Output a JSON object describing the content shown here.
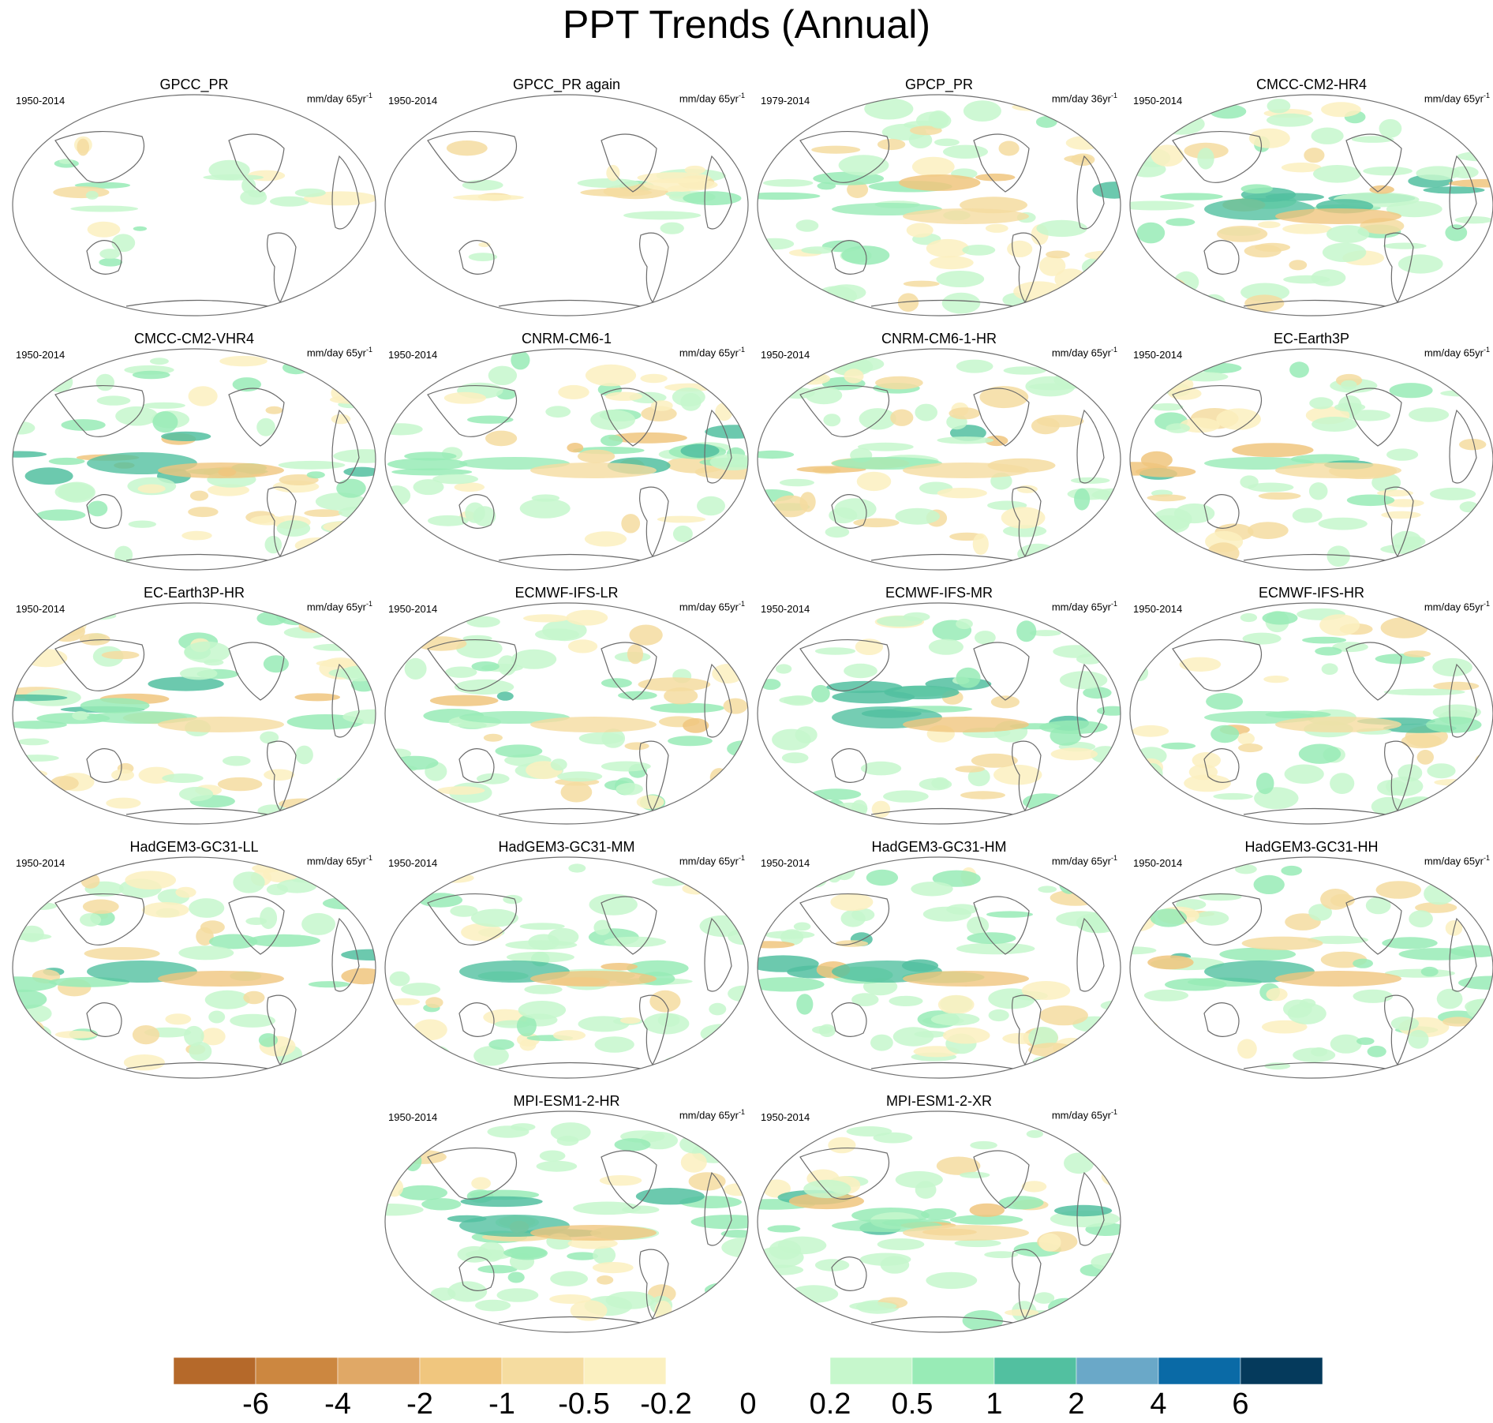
{
  "title": "PPT Trends (Annual)",
  "panels": [
    {
      "name": "GPCC_PR",
      "period": "1950-2014",
      "units": "mm/day 65yr",
      "units_exp": "-1"
    },
    {
      "name": "GPCC_PR again",
      "period": "1950-2014",
      "units": "mm/day 65yr",
      "units_exp": "-1"
    },
    {
      "name": "GPCP_PR",
      "period": "1979-2014",
      "units": "mm/day 36yr",
      "units_exp": "-1"
    },
    {
      "name": "CMCC-CM2-HR4",
      "period": "1950-2014",
      "units": "mm/day 65yr",
      "units_exp": "-1"
    },
    {
      "name": "CMCC-CM2-VHR4",
      "period": "1950-2014",
      "units": "mm/day 65yr",
      "units_exp": "-1"
    },
    {
      "name": "CNRM-CM6-1",
      "period": "1950-2014",
      "units": "mm/day 65yr",
      "units_exp": "-1"
    },
    {
      "name": "CNRM-CM6-1-HR",
      "period": "1950-2014",
      "units": "mm/day 65yr",
      "units_exp": "-1"
    },
    {
      "name": "EC-Earth3P",
      "period": "1950-2014",
      "units": "mm/day 65yr",
      "units_exp": "-1"
    },
    {
      "name": "EC-Earth3P-HR",
      "period": "1950-2014",
      "units": "mm/day 65yr",
      "units_exp": "-1"
    },
    {
      "name": "ECMWF-IFS-LR",
      "period": "1950-2014",
      "units": "mm/day 65yr",
      "units_exp": "-1"
    },
    {
      "name": "ECMWF-IFS-MR",
      "period": "1950-2014",
      "units": "mm/day 65yr",
      "units_exp": "-1"
    },
    {
      "name": "ECMWF-IFS-HR",
      "period": "1950-2014",
      "units": "mm/day 65yr",
      "units_exp": "-1"
    },
    {
      "name": "HadGEM3-GC31-LL",
      "period": "1950-2014",
      "units": "mm/day 65yr",
      "units_exp": "-1"
    },
    {
      "name": "HadGEM3-GC31-MM",
      "period": "1950-2014",
      "units": "mm/day 65yr",
      "units_exp": "-1"
    },
    {
      "name": "HadGEM3-GC31-HM",
      "period": "1950-2014",
      "units": "mm/day 65yr",
      "units_exp": "-1"
    },
    {
      "name": "HadGEM3-GC31-HH",
      "period": "1950-2014",
      "units": "mm/day 65yr",
      "units_exp": "-1"
    },
    {
      "name": "MPI-ESM1-2-HR",
      "period": "1950-2014",
      "units": "mm/day 65yr",
      "units_exp": "-1"
    },
    {
      "name": "MPI-ESM1-2-XR",
      "period": "1950-2014",
      "units": "mm/day 65yr",
      "units_exp": "-1"
    }
  ],
  "colorbar": {
    "labels": [
      "-6",
      "-4",
      "-2",
      "-1",
      "-0.5",
      "-0.2",
      "0",
      "0.2",
      "0.5",
      "1",
      "2",
      "4",
      "6"
    ],
    "colors": [
      "#b5692a",
      "#cc8740",
      "#e0a866",
      "#f0c67e",
      "#f5dca0",
      "#fbf0c0",
      "#ffffff",
      "#ffffff",
      "#c6f7cc",
      "#98ebb6",
      "#52c0a0",
      "#6aa8c8",
      "#0a6aa6",
      "#053a5c"
    ]
  }
}
